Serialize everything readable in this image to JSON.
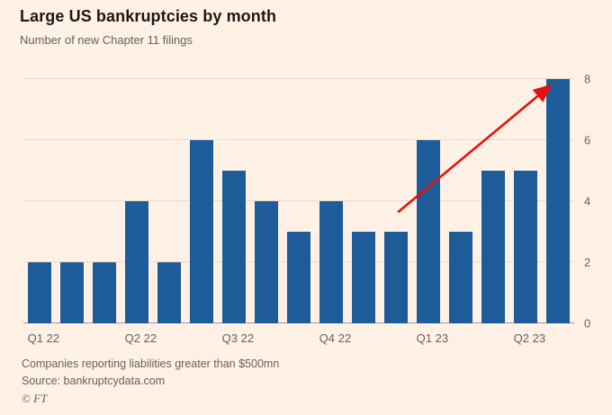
{
  "header": {
    "title": "Large US bankruptcies by month",
    "subtitle": "Number of new Chapter 11 filings"
  },
  "footer": {
    "note": "Companies reporting liabilities greater than $500mn",
    "source": "Source: bankruptcydata.com",
    "copyright": "© FT"
  },
  "colors": {
    "background": "#FFF1E5",
    "bar": "#1E5B99",
    "arrow": "#E3120B",
    "text": "#1A1817",
    "muted": "#66605C",
    "gridline": "#E8DACA"
  },
  "chart_data": {
    "type": "bar",
    "title": "Large US bankruptcies by month",
    "subtitle": "Number of new Chapter 11 filings",
    "values": [
      2,
      2,
      2,
      4,
      2,
      6,
      5,
      4,
      3,
      4,
      3,
      3,
      6,
      3,
      5,
      5,
      8
    ],
    "x_tick_labels": [
      {
        "label": "Q1 22",
        "bar_index": 0
      },
      {
        "label": "Q2 22",
        "bar_index": 3
      },
      {
        "label": "Q3 22",
        "bar_index": 6
      },
      {
        "label": "Q4 22",
        "bar_index": 9
      },
      {
        "label": "Q1 23",
        "bar_index": 12
      },
      {
        "label": "Q2 23",
        "bar_index": 15
      }
    ],
    "y_ticks": [
      0,
      2,
      4,
      6,
      8
    ],
    "ylim": [
      0,
      8
    ],
    "y_axis_side": "right",
    "grid": true,
    "legend": "none",
    "annotation": {
      "type": "arrow",
      "color": "#E3120B",
      "from_frac": [
        0.68,
        0.545
      ],
      "to_frac": [
        0.955,
        0.03
      ]
    }
  }
}
